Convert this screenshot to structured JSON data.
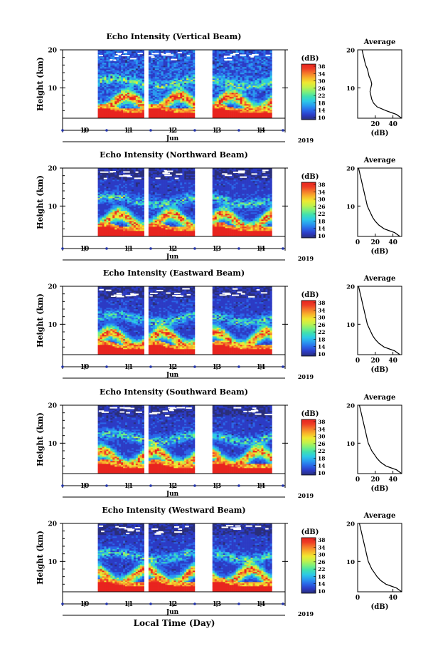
{
  "figure": {
    "xlabel": "Local Time (Day)",
    "month_label": "Jun",
    "year_label": "2019"
  },
  "colorbar": {
    "unit_label": "(dB)",
    "tick_labels": [
      "38",
      "34",
      "30",
      "26",
      "22",
      "18",
      "14",
      "10"
    ],
    "colors": [
      "#2a2f7a",
      "#2c3bc4",
      "#2a66e8",
      "#2a9aef",
      "#2dc9e6",
      "#3fe0b0",
      "#7ef07a",
      "#c2f14b",
      "#f0e830",
      "#f8b42a",
      "#f57a2a",
      "#ee3c25",
      "#e8241f"
    ]
  },
  "chart_data": [
    {
      "type": "heatmap",
      "title": "Echo Intensity (Vertical Beam)",
      "ylabel": "Height (km)",
      "ylim": [
        2,
        20
      ],
      "yticks": [
        20,
        10
      ],
      "x_tick_labels": [
        "10",
        "11",
        "12",
        "13",
        "14"
      ],
      "data_periods_day": [
        [
          10.3,
          11.35
        ],
        [
          11.45,
          12.5
        ],
        [
          12.9,
          14.25
        ]
      ],
      "colorbar_range": [
        10,
        38
      ],
      "profile": {
        "title": "Average",
        "xlabel": "(dB)",
        "xlim": [
          0,
          50
        ],
        "x_tick_labels": [
          "20",
          "40"
        ],
        "x_tick_values": [
          20,
          40
        ],
        "ylim": [
          2,
          20
        ],
        "y_tick_labels": [
          "20",
          "10"
        ],
        "height_km": [
          2,
          3,
          3.5,
          4,
          5,
          6,
          7,
          8,
          9,
          10,
          11,
          12,
          13,
          14,
          15,
          16,
          17,
          18,
          19,
          20
        ],
        "avg_db": [
          50,
          44,
          38,
          32,
          22,
          18,
          16,
          15,
          14,
          15,
          16,
          15,
          13,
          12,
          11,
          9,
          8,
          7,
          6,
          5
        ]
      }
    },
    {
      "type": "heatmap",
      "title": "Echo Intensity (Northward Beam)",
      "ylabel": "Height (km)",
      "ylim": [
        2,
        20
      ],
      "yticks": [
        20,
        10
      ],
      "x_tick_labels": [
        "10",
        "11",
        "12",
        "13",
        "14"
      ],
      "data_periods_day": [
        [
          10.3,
          11.35
        ],
        [
          11.45,
          12.5
        ],
        [
          12.9,
          14.25
        ]
      ],
      "colorbar_range": [
        10,
        38
      ],
      "profile": {
        "title": "Average",
        "xlabel": "(dB)",
        "xlim": [
          0,
          50
        ],
        "x_tick_labels": [
          "0",
          "20",
          "40"
        ],
        "x_tick_values": [
          0,
          20,
          40
        ],
        "ylim": [
          2,
          20
        ],
        "y_tick_labels": [
          "20",
          "10"
        ],
        "height_km": [
          2,
          3,
          3.5,
          4,
          5,
          6,
          7,
          8,
          9,
          10,
          11,
          12,
          13,
          14,
          15,
          16,
          17,
          18,
          19,
          20
        ],
        "avg_db": [
          48,
          42,
          36,
          30,
          24,
          20,
          17,
          15,
          13,
          11,
          10,
          9,
          8,
          7,
          6,
          5,
          4,
          3,
          2,
          1
        ]
      }
    },
    {
      "type": "heatmap",
      "title": "Echo Intensity (Eastward Beam)",
      "ylabel": "Height (km)",
      "ylim": [
        2,
        20
      ],
      "yticks": [
        20,
        10
      ],
      "x_tick_labels": [
        "10",
        "11",
        "12",
        "13",
        "14"
      ],
      "data_periods_day": [
        [
          10.3,
          11.35
        ],
        [
          11.45,
          12.5
        ],
        [
          12.9,
          14.25
        ]
      ],
      "colorbar_range": [
        10,
        38
      ],
      "profile": {
        "title": "Average",
        "xlabel": "(dB)",
        "xlim": [
          0,
          50
        ],
        "x_tick_labels": [
          "0",
          "20",
          "40"
        ],
        "x_tick_values": [
          0,
          20,
          40
        ],
        "ylim": [
          2,
          20
        ],
        "y_tick_labels": [
          "20",
          "10"
        ],
        "height_km": [
          2,
          3,
          3.5,
          4,
          5,
          6,
          7,
          8,
          9,
          10,
          11,
          12,
          13,
          14,
          15,
          16,
          17,
          18,
          19,
          20
        ],
        "avg_db": [
          48,
          42,
          36,
          30,
          24,
          20,
          17,
          15,
          13,
          11,
          10,
          9,
          8,
          7,
          6,
          5,
          4,
          3,
          2,
          1
        ]
      }
    },
    {
      "type": "heatmap",
      "title": "Echo Intensity (Southward Beam)",
      "ylabel": "Height (km)",
      "ylim": [
        2,
        20
      ],
      "yticks": [
        20,
        10
      ],
      "x_tick_labels": [
        "10",
        "11",
        "12",
        "13",
        "14"
      ],
      "data_periods_day": [
        [
          10.3,
          11.35
        ],
        [
          11.45,
          12.5
        ],
        [
          12.9,
          14.25
        ]
      ],
      "colorbar_range": [
        10,
        38
      ],
      "profile": {
        "title": "Average",
        "xlabel": "(dB)",
        "xlim": [
          0,
          50
        ],
        "x_tick_labels": [
          "0",
          "20",
          "40"
        ],
        "x_tick_values": [
          0,
          20,
          40
        ],
        "ylim": [
          2,
          20
        ],
        "y_tick_labels": [
          "20",
          "10"
        ],
        "height_km": [
          2,
          3,
          3.5,
          4,
          5,
          6,
          7,
          8,
          9,
          10,
          11,
          12,
          13,
          14,
          15,
          16,
          17,
          18,
          19,
          20
        ],
        "avg_db": [
          50,
          44,
          38,
          32,
          26,
          22,
          19,
          16,
          14,
          12,
          11,
          10,
          9,
          8,
          7,
          6,
          5,
          4,
          3,
          2
        ]
      }
    },
    {
      "type": "heatmap",
      "title": "Echo Intensity (Westward Beam)",
      "ylabel": "Height (km)",
      "ylim": [
        2,
        20
      ],
      "yticks": [
        20,
        10
      ],
      "x_tick_labels": [
        "10",
        "11",
        "12",
        "13",
        "14"
      ],
      "data_periods_day": [
        [
          10.3,
          11.35
        ],
        [
          11.45,
          12.5
        ],
        [
          12.9,
          14.25
        ]
      ],
      "colorbar_range": [
        10,
        38
      ],
      "profile": {
        "title": "Average",
        "xlabel": "(dB)",
        "xlim": [
          0,
          50
        ],
        "x_tick_labels": [
          "0",
          "40"
        ],
        "x_tick_values": [
          0,
          40
        ],
        "ylim": [
          2,
          20
        ],
        "y_tick_labels": [
          "20",
          "10"
        ],
        "height_km": [
          2,
          3,
          3.5,
          4,
          5,
          6,
          7,
          8,
          9,
          10,
          11,
          12,
          13,
          14,
          15,
          16,
          17,
          18,
          19,
          20
        ],
        "avg_db": [
          50,
          44,
          38,
          32,
          26,
          22,
          19,
          16,
          14,
          12,
          11,
          10,
          9,
          8,
          7,
          6,
          5,
          4,
          3,
          2
        ]
      }
    }
  ]
}
